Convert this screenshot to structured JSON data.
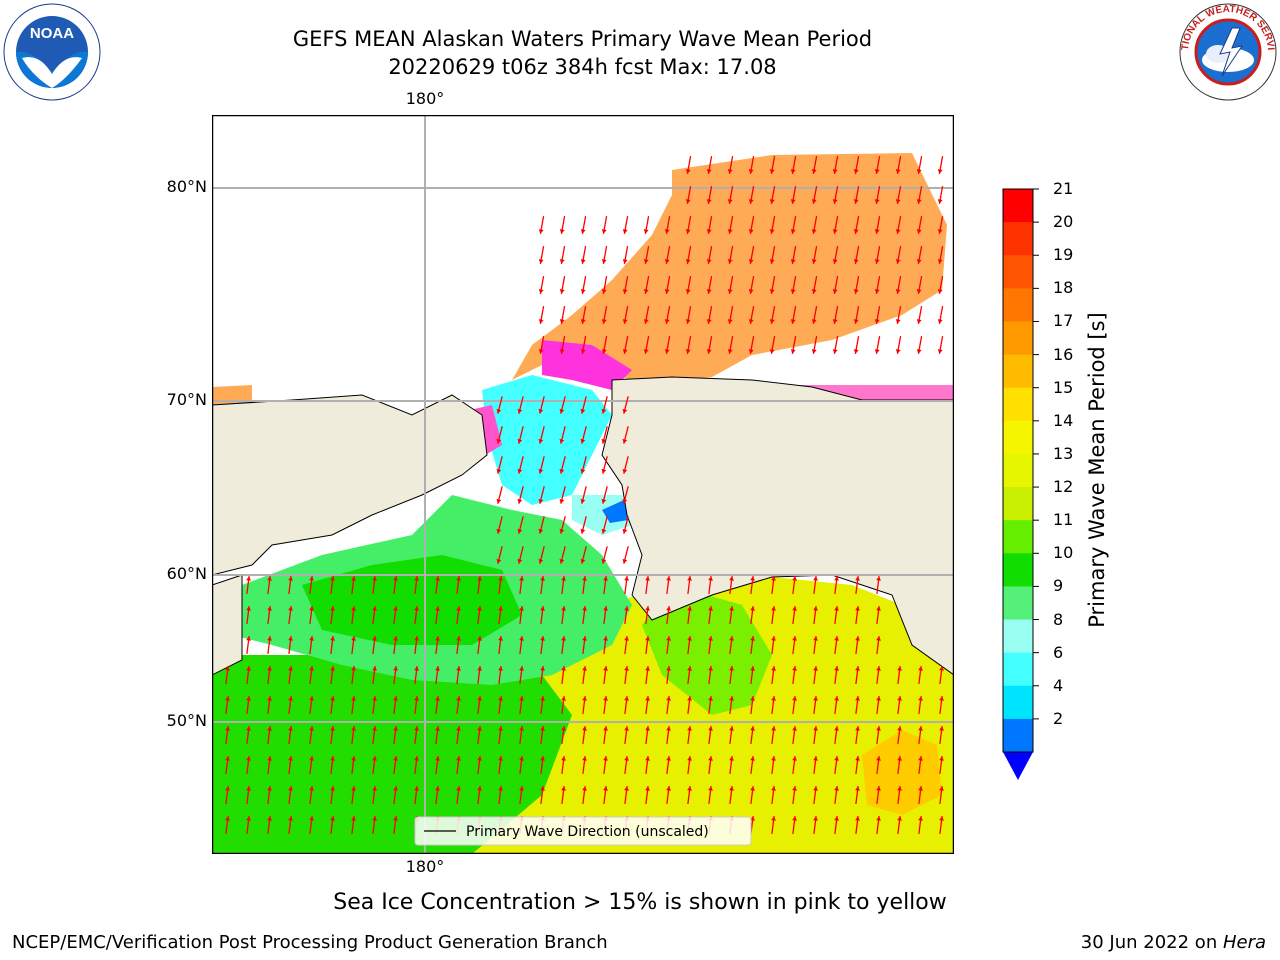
{
  "title": {
    "line1": "GEFS MEAN Alaskan Waters Primary Wave Mean Period",
    "line2": "20220629 t06z 384h fcst   Max: 17.08"
  },
  "logos": {
    "noaa_text": "NOAA",
    "nws_text": "NATIONAL WEATHER SERVICE"
  },
  "map": {
    "lon_top": "180°",
    "lon_bottom": "180°",
    "lat_labels": [
      "80°N",
      "70°N",
      "60°N",
      "50°N"
    ],
    "legend_text": "Primary Wave Direction (unscaled)",
    "land_color": "#efecdc"
  },
  "colorbar": {
    "label": "Primary Wave Mean Period [s]",
    "ticks": [
      "21",
      "20",
      "19",
      "18",
      "17",
      "16",
      "15",
      "14",
      "13",
      "12",
      "11",
      "10",
      "9",
      "8",
      "6",
      "4",
      "2"
    ],
    "colors": [
      "#ff0000",
      "#ff3300",
      "#ff5500",
      "#ff7700",
      "#ff9900",
      "#ffbb00",
      "#ffe000",
      "#f5f500",
      "#e6f500",
      "#c8f000",
      "#66ee00",
      "#11dd00",
      "#55f07a",
      "#99fff2",
      "#44ffff",
      "#00e5ff",
      "#0077ff"
    ],
    "extend_color": "#0000ff"
  },
  "caption": "Sea Ice Concentration > 15% is shown in pink to yellow",
  "footer": {
    "left": "NCEP/EMC/Verification Post Processing Product Generation Branch",
    "right_prefix": "30 Jun 2022 on ",
    "right_host": "Hera"
  }
}
